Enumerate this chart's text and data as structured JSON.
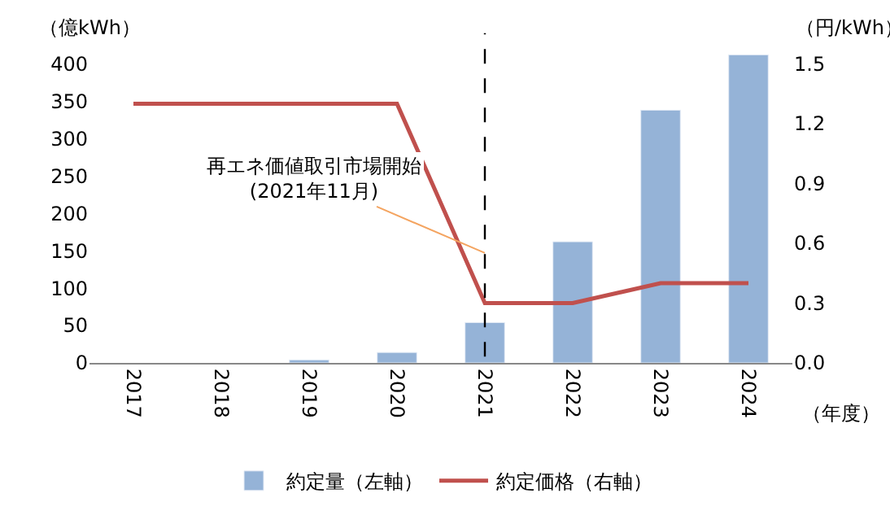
{
  "chart_data": {
    "type": "bar",
    "categories": [
      "2017",
      "2018",
      "2019",
      "2020",
      "2021",
      "2022",
      "2023",
      "2024"
    ],
    "series": [
      {
        "name": "約定量（左軸）",
        "color": "#95b3d7",
        "values": [
          null,
          null,
          4,
          14,
          54,
          162,
          338,
          412
        ]
      },
      {
        "name": "約定価格（右軸）",
        "type": "line",
        "axis": "y2",
        "color": "#c0504d",
        "values": [
          1.3,
          1.3,
          1.3,
          1.3,
          0.3,
          0.3,
          0.4,
          0.4
        ]
      }
    ],
    "ylabel": "（億kWh）",
    "y2label": "（円/kWh）",
    "xlabel": "（年度）",
    "ylim": [
      0,
      420
    ],
    "yticks": [
      0,
      50,
      100,
      150,
      200,
      250,
      300,
      350,
      400
    ],
    "y2lim": [
      0,
      1.575
    ],
    "y2ticks": [
      {
        "value": 0,
        "label": "0.0"
      },
      {
        "value": 0.3,
        "label": "0.3"
      },
      {
        "value": 0.6,
        "label": "0.6"
      },
      {
        "value": 0.9,
        "label": "0.9"
      },
      {
        "value": 1.2,
        "label": "1.2"
      },
      {
        "value": 1.5,
        "label": "1.5"
      }
    ],
    "ref_lines": [
      {
        "axis": "x",
        "value": "2021",
        "label": "再エネ価値取引市場開始\n(2021年11月)",
        "color": "#000000",
        "line_style": "dashed"
      }
    ],
    "legend": "bottom",
    "marker": "none",
    "line_style": "solid"
  }
}
